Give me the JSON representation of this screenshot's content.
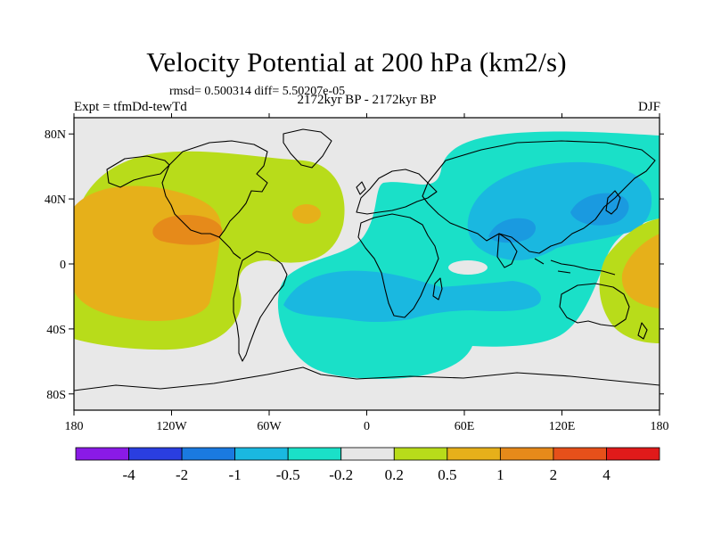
{
  "chart_data": {
    "type": "heatmap",
    "title": "Velocity Potential at 200 hPa (km2/s)",
    "stats": "rmsd= 0.500314 diff= 5.50207e-05",
    "left_label": "Expt = tfmDd-tewTd",
    "center_label": "2172kyr BP - 2172kyr BP",
    "right_label": "DJF",
    "xlabel": "",
    "ylabel": "",
    "xlim": [
      -180,
      180
    ],
    "ylim": [
      -90,
      90
    ],
    "x_ticks": [
      {
        "value": -180,
        "label": "180"
      },
      {
        "value": -120,
        "label": "120W"
      },
      {
        "value": -60,
        "label": "60W"
      },
      {
        "value": 0,
        "label": "0"
      },
      {
        "value": 60,
        "label": "60E"
      },
      {
        "value": 120,
        "label": "120E"
      },
      {
        "value": 180,
        "label": "180"
      }
    ],
    "y_ticks": [
      {
        "value": 80,
        "label": "80N"
      },
      {
        "value": 40,
        "label": "40N"
      },
      {
        "value": 0,
        "label": "0"
      },
      {
        "value": -40,
        "label": "40S"
      },
      {
        "value": -80,
        "label": "80S"
      }
    ],
    "colorbar": {
      "levels": [
        "-4",
        "-2",
        "-1",
        "-0.5",
        "-0.2",
        "0.2",
        "0.5",
        "1",
        "2",
        "4"
      ],
      "colors": [
        "#8a1ae6",
        "#2a3ee0",
        "#1a7ae0",
        "#1ab8e0",
        "#1ae0c8",
        "#e6e6e6",
        "#b8dc1a",
        "#e6b01a",
        "#e68a1a",
        "#e6501a",
        "#e01a1a"
      ]
    },
    "regions": [
      {
        "name": "pacific-americas-positive",
        "level": "0.2 to 0.5",
        "lon_range": [
          -180,
          -20
        ],
        "lat_range": [
          -60,
          75
        ]
      },
      {
        "name": "central-america-positive",
        "level": "0.5 to 1",
        "lon_range": [
          -165,
          -75
        ],
        "lat_range": [
          -40,
          45
        ]
      },
      {
        "name": "central-america-max",
        "level": "1 to 2",
        "lon_range": [
          -130,
          -95
        ],
        "lat_range": [
          15,
          28
        ]
      },
      {
        "name": "indian-ocean-negative",
        "level": "-0.5 to -0.2",
        "lon_range": [
          -55,
          115
        ],
        "lat_range": [
          -70,
          10
        ]
      },
      {
        "name": "asia-negative",
        "level": "-0.5 to -0.2",
        "lon_range": [
          40,
          180
        ],
        "lat_range": [
          -10,
          85
        ]
      },
      {
        "name": "asia-core-negative",
        "level": "-1 to -0.5",
        "lon_range": [
          70,
          165
        ],
        "lat_range": [
          10,
          60
        ]
      },
      {
        "name": "west-pacific-positive",
        "level": "0.2 to 1",
        "lon_range": [
          140,
          180
        ],
        "lat_range": [
          -45,
          25
        ]
      }
    ]
  }
}
